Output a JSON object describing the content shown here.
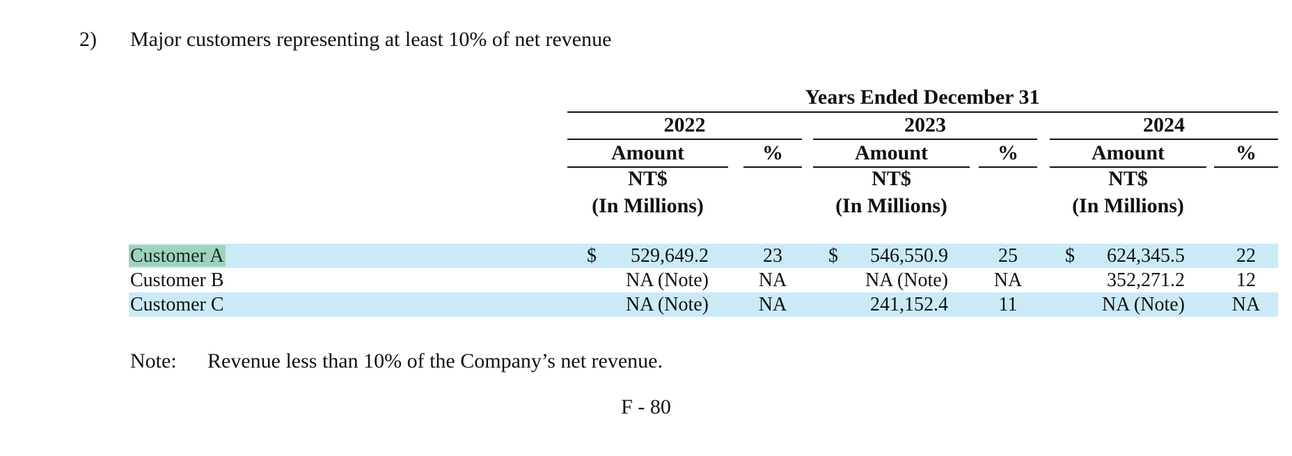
{
  "section": {
    "number": "2)",
    "title": "Major customers representing at least 10% of net revenue"
  },
  "table": {
    "group_header": "Years Ended December 31",
    "years": [
      "2022",
      "2023",
      "2024"
    ],
    "amount_header": "Amount",
    "pct_header": "%",
    "unit_line1": "NT$",
    "unit_line2": "(In Millions)",
    "currency_symbol": "$",
    "rows": [
      {
        "name": "Customer A",
        "cells": [
          {
            "amount": "529,649.2",
            "pct": "23"
          },
          {
            "amount": "546,550.9",
            "pct": "25"
          },
          {
            "amount": "624,345.5",
            "pct": "22"
          }
        ]
      },
      {
        "name": "Customer B",
        "cells": [
          {
            "amount": "NA (Note)",
            "pct": "NA"
          },
          {
            "amount": "NA (Note)",
            "pct": "NA"
          },
          {
            "amount": "352,271.2",
            "pct": "12"
          }
        ]
      },
      {
        "name": "Customer C",
        "cells": [
          {
            "amount": "NA (Note)",
            "pct": "NA"
          },
          {
            "amount": "241,152.4",
            "pct": "11"
          },
          {
            "amount": "NA (Note)",
            "pct": "NA"
          }
        ]
      }
    ]
  },
  "note": {
    "label": "Note:",
    "text": "Revenue less than 10% of the Company’s net revenue."
  },
  "page_number": "F - 80",
  "colors": {
    "row_band": "#cbeaf8",
    "highlight": "#9fd3bd"
  }
}
